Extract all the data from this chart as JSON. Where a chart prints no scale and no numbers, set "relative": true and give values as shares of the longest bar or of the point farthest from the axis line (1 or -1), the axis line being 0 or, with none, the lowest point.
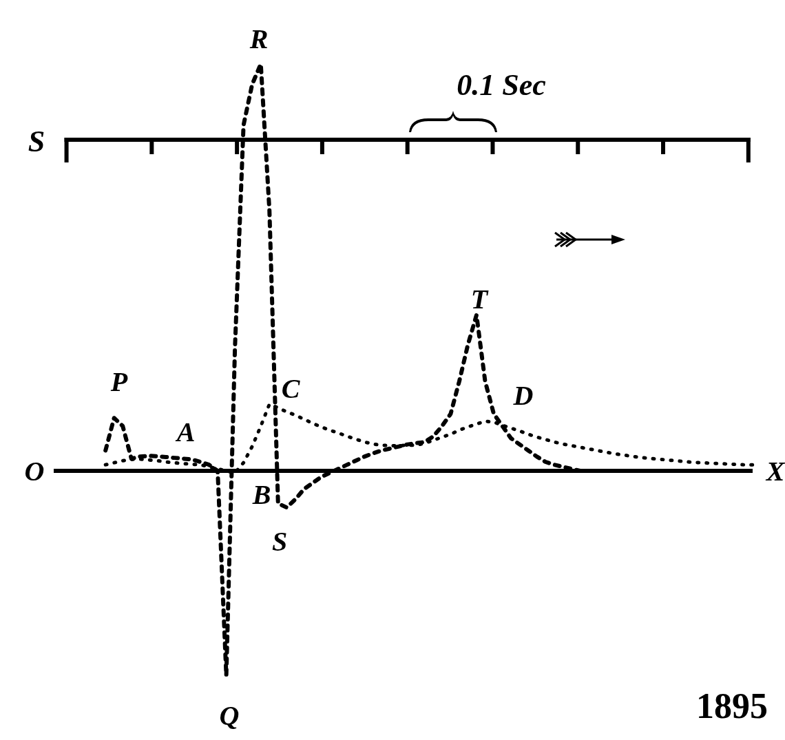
{
  "chart_data": {
    "type": "line",
    "relative": true,
    "categories": [
      null,
      null,
      null,
      null,
      null,
      null,
      null,
      null,
      null,
      null,
      null,
      null,
      null,
      null,
      null,
      null,
      null,
      null,
      null,
      null,
      null,
      null,
      null,
      null,
      null,
      null,
      null,
      null,
      null,
      null,
      null,
      null,
      null,
      null,
      null,
      null,
      null,
      null,
      null,
      null,
      null,
      null,
      null,
      null,
      null,
      null,
      null,
      null,
      null,
      null,
      null,
      null,
      null,
      null,
      null,
      null,
      null,
      null,
      null,
      null,
      null,
      null,
      null,
      null,
      null,
      null,
      null,
      null,
      null,
      null,
      null,
      null,
      null,
      null,
      null,
      null,
      null,
      null,
      null,
      null,
      null,
      null
    ],
    "series": [
      {
        "color": "#000000",
        "line_style": "dashed",
        "values": [
          null,
          null,
          null,
          null,
          null,
          null,
          0.05,
          0.13,
          0.11,
          0.03,
          0.035,
          0.037,
          0.036,
          0.034,
          0.032,
          0.03,
          0.028,
          0.022,
          0.015,
          0.0,
          -0.503,
          0.3,
          0.85,
          0.95,
          1.0,
          0.64,
          -0.08,
          -0.09,
          -0.07,
          -0.045,
          -0.03,
          -0.015,
          -0.005,
          0.005,
          0.015,
          0.025,
          0.035,
          0.043,
          0.05,
          0.055,
          0.06,
          0.065,
          0.068,
          0.071,
          0.085,
          0.11,
          0.14,
          0.22,
          0.31,
          0.383,
          0.22,
          0.14,
          0.11,
          0.08,
          0.065,
          0.05,
          0.035,
          0.022,
          0.015,
          0.01,
          0.005,
          0.0,
          null,
          null,
          null,
          null,
          null,
          null,
          null,
          null,
          null,
          null,
          null,
          null,
          null,
          null,
          null,
          null,
          null,
          null,
          null,
          null
        ]
      },
      {
        "color": "#000000",
        "line_style": "dotted",
        "values": [
          null,
          null,
          null,
          null,
          null,
          null,
          0.015,
          0.02,
          0.025,
          0.028,
          0.029,
          0.027,
          0.025,
          0.022,
          0.02,
          0.018,
          0.016,
          0.015,
          0.01,
          0.005,
          0.0,
          -0.005,
          0.02,
          0.06,
          0.11,
          0.164,
          0.155,
          0.145,
          0.137,
          0.127,
          0.117,
          0.108,
          0.1,
          0.093,
          0.085,
          0.078,
          0.071,
          0.066,
          0.063,
          0.062,
          0.062,
          0.063,
          0.063,
          0.068,
          0.075,
          0.083,
          0.09,
          0.1,
          0.108,
          0.115,
          0.122,
          0.12,
          0.112,
          0.105,
          0.098,
          0.09,
          0.083,
          0.077,
          0.071,
          0.066,
          0.062,
          0.058,
          0.054,
          0.05,
          0.046,
          0.042,
          0.039,
          0.036,
          0.033,
          0.031,
          0.029,
          0.027,
          0.025,
          0.023,
          0.021,
          0.02,
          0.019,
          0.018,
          0.017,
          0.016,
          0.015,
          0.015
        ]
      }
    ],
    "annotations": [
      "P",
      "Q",
      "R",
      "S",
      "T",
      "A",
      "B",
      "C",
      "D",
      "O",
      "X",
      "S",
      "0.1 Sec",
      "1895"
    ]
  }
}
